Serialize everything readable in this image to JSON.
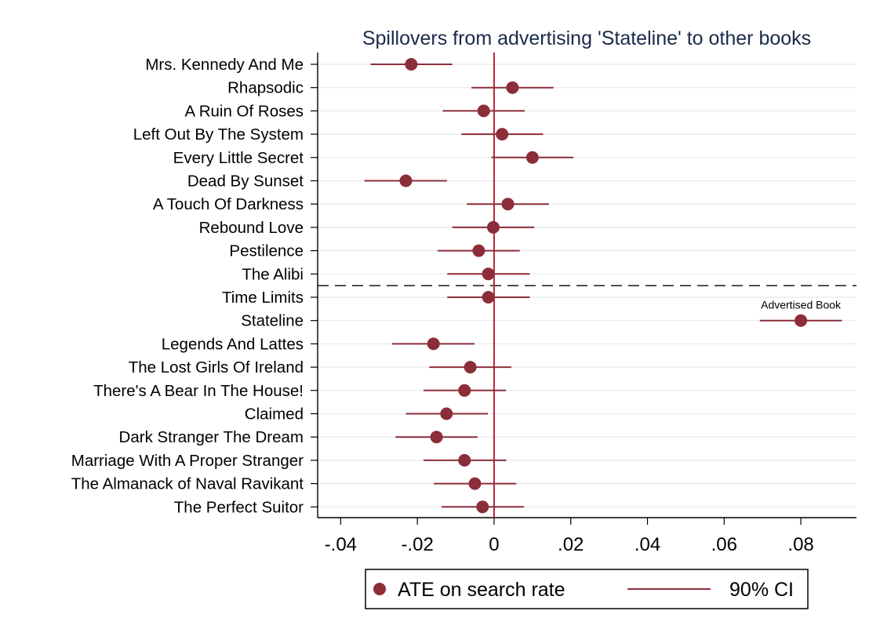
{
  "chart_data": {
    "type": "scatter",
    "title": "Spillovers from advertising 'Stateline' to other books",
    "xlabel": "",
    "ylabel": "",
    "xlim": [
      -0.046,
      0.0945
    ],
    "x_ticks": [
      -0.04,
      -0.02,
      0,
      0.02,
      0.04,
      0.06,
      0.08
    ],
    "x_tick_labels": [
      "-.04",
      "-.02",
      "0",
      ".02",
      ".04",
      ".06",
      ".08"
    ],
    "grid": true,
    "reference_line_x": 0,
    "separator_after_category": "The Alibi",
    "legend_position": "bottom",
    "point_color": "#8c2d3a",
    "zero_line_color": "#b5233a",
    "categories": [
      "Mrs. Kennedy And Me",
      "Rhapsodic",
      "A Ruin Of Roses",
      "Left Out By The System",
      "Every Little Secret",
      "Dead By Sunset",
      "A Touch Of Darkness",
      "Rebound Love",
      "Pestilence",
      "The Alibi",
      "Time Limits",
      "Stateline",
      "Legends And Lattes",
      "The Lost Girls Of Ireland",
      "There's A Bear In The House!",
      "Claimed",
      "Dark Stranger The Dream",
      "Marriage With A Proper Stranger",
      "The Almanack of Naval Ravikant",
      "The Perfect Suitor"
    ],
    "series": [
      {
        "name": "ATE on search rate",
        "values": [
          -0.0216,
          0.0048,
          -0.0027,
          0.0021,
          0.01,
          -0.023,
          0.0036,
          -0.0002,
          -0.004,
          -0.0015,
          -0.0015,
          0.08,
          -0.0158,
          -0.0062,
          -0.0077,
          -0.0124,
          -0.015,
          -0.0077,
          -0.005,
          -0.003
        ]
      },
      {
        "name": "90% CI",
        "lower": [
          -0.0322,
          -0.0059,
          -0.0134,
          -0.0085,
          -0.0007,
          -0.0338,
          -0.0071,
          -0.0109,
          -0.0147,
          -0.0122,
          -0.0122,
          0.0693,
          -0.0266,
          -0.0169,
          -0.0184,
          -0.023,
          -0.0257,
          -0.0184,
          -0.0157,
          -0.0137
        ],
        "upper": [
          -0.0109,
          0.0155,
          0.008,
          0.0128,
          0.0207,
          -0.0123,
          0.0143,
          0.0105,
          0.0067,
          0.0093,
          0.0093,
          0.0907,
          -0.0051,
          0.0045,
          0.0031,
          -0.0016,
          -0.0043,
          0.0032,
          0.0058,
          0.0078
        ]
      }
    ],
    "annotations": [
      {
        "category": "Stateline",
        "text": "Advertised Book"
      }
    ]
  }
}
